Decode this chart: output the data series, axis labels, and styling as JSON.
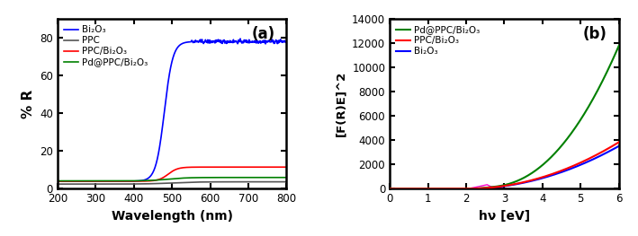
{
  "panel_a": {
    "title": "(a)",
    "xlabel": "Wavelength (nm)",
    "ylabel": "% R",
    "xlim": [
      200,
      800
    ],
    "ylim": [
      0,
      90
    ],
    "yticks": [
      0,
      20,
      40,
      60,
      80
    ],
    "xticks": [
      200,
      300,
      400,
      500,
      600,
      700,
      800
    ],
    "legend": [
      "Bi₂O₃",
      "PPC",
      "PPC/Bi₂O₃",
      "Pd@PPC/Bi₂O₃"
    ],
    "colors": [
      "#0000ff",
      "#555555",
      "#ff0000",
      "#008000"
    ]
  },
  "panel_b": {
    "title": "(b)",
    "xlabel": "hν [eV]",
    "ylabel": "[F(R)E]^2",
    "xlim": [
      0,
      6
    ],
    "ylim": [
      0,
      14000
    ],
    "yticks": [
      0,
      2000,
      4000,
      6000,
      8000,
      10000,
      12000,
      14000
    ],
    "xticks": [
      0,
      1,
      2,
      3,
      4,
      5,
      6
    ],
    "legend": [
      "Pd@PPC/Bi₂O₃",
      "PPC/Bi₂O₃",
      "Bi₂O₃"
    ],
    "colors": [
      "#008000",
      "#ff0000",
      "#0000ff"
    ]
  },
  "background_color": "#ffffff"
}
